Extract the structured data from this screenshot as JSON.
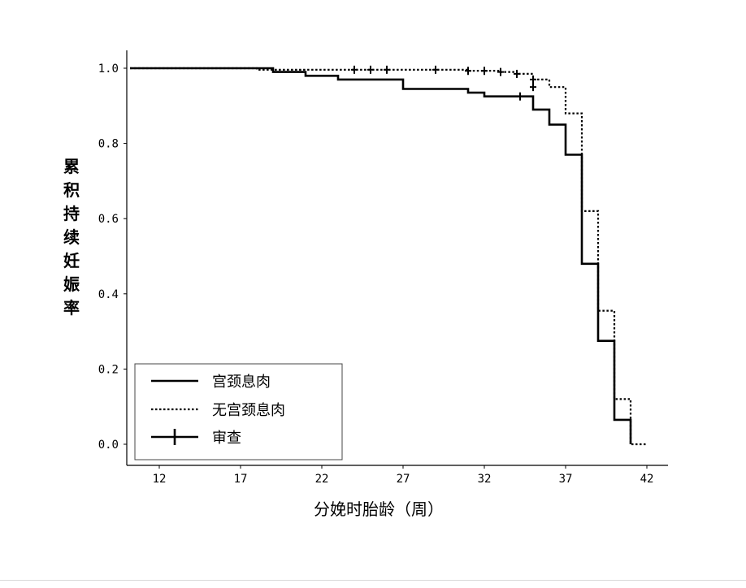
{
  "chart_data": {
    "type": "line",
    "xlabel": "分娩时胎龄（周）",
    "ylabel": "累积持续妊娠率",
    "xlim": [
      10,
      43
    ],
    "ylim": [
      0,
      1.0
    ],
    "xticks": [
      12,
      17,
      22,
      27,
      32,
      37,
      42
    ],
    "yticks": [
      0.0,
      0.2,
      0.4,
      0.6,
      0.8,
      1.0
    ],
    "x_tick_labels": [
      "12",
      "17",
      "22",
      "27",
      "32",
      "37",
      "42"
    ],
    "y_tick_labels": [
      "0.0",
      "0.2",
      "0.4",
      "0.6",
      "0.8",
      "1.0"
    ],
    "legend_position": "bottom-left",
    "legend": {
      "items": [
        {
          "label": "宫颈息肉",
          "style": "solid"
        },
        {
          "label": "无宫颈息肉",
          "style": "dotted"
        },
        {
          "label": "审查",
          "style": "censor"
        }
      ]
    },
    "series": [
      {
        "name": "宫颈息肉",
        "style": "solid",
        "color": "#000000",
        "step_points": [
          [
            10.2,
            1.0
          ],
          [
            19.0,
            1.0
          ],
          [
            19.0,
            0.99
          ],
          [
            21.0,
            0.99
          ],
          [
            21.0,
            0.98
          ],
          [
            23.0,
            0.98
          ],
          [
            23.0,
            0.97
          ],
          [
            27.0,
            0.97
          ],
          [
            27.0,
            0.945
          ],
          [
            31.0,
            0.945
          ],
          [
            31.0,
            0.935
          ],
          [
            32.0,
            0.935
          ],
          [
            32.0,
            0.925
          ],
          [
            35.0,
            0.925
          ],
          [
            35.0,
            0.89
          ],
          [
            36.0,
            0.89
          ],
          [
            36.0,
            0.85
          ],
          [
            37.0,
            0.85
          ],
          [
            37.0,
            0.77
          ],
          [
            38.0,
            0.77
          ],
          [
            38.0,
            0.48
          ],
          [
            39.0,
            0.48
          ],
          [
            39.0,
            0.275
          ],
          [
            40.0,
            0.275
          ],
          [
            40.0,
            0.065
          ],
          [
            41.0,
            0.065
          ],
          [
            41.0,
            0.0
          ],
          [
            41.0,
            0.0
          ]
        ],
        "censor_marks": [
          [
            34.2,
            0.925
          ]
        ]
      },
      {
        "name": "无宫颈息肉",
        "style": "dotted",
        "color": "#000000",
        "step_points": [
          [
            10.2,
            1.0
          ],
          [
            18.0,
            1.0
          ],
          [
            18.0,
            0.996
          ],
          [
            31.0,
            0.996
          ],
          [
            31.0,
            0.993
          ],
          [
            33.0,
            0.993
          ],
          [
            33.0,
            0.99
          ],
          [
            34.0,
            0.99
          ],
          [
            34.0,
            0.985
          ],
          [
            35.0,
            0.985
          ],
          [
            35.0,
            0.97
          ],
          [
            36.0,
            0.97
          ],
          [
            36.0,
            0.95
          ],
          [
            37.0,
            0.95
          ],
          [
            37.0,
            0.88
          ],
          [
            38.0,
            0.88
          ],
          [
            38.0,
            0.62
          ],
          [
            39.0,
            0.62
          ],
          [
            39.0,
            0.355
          ],
          [
            40.0,
            0.355
          ],
          [
            40.0,
            0.12
          ],
          [
            41.0,
            0.12
          ],
          [
            41.0,
            0.0
          ],
          [
            42.0,
            0.0
          ]
        ],
        "censor_marks": [
          [
            24.0,
            0.996
          ],
          [
            25.0,
            0.996
          ],
          [
            26.0,
            0.996
          ],
          [
            29.0,
            0.996
          ],
          [
            31.0,
            0.993
          ],
          [
            32.0,
            0.993
          ],
          [
            33.0,
            0.99
          ],
          [
            34.0,
            0.985
          ],
          [
            35.0,
            0.97
          ],
          [
            35.0,
            0.95
          ]
        ]
      }
    ]
  }
}
